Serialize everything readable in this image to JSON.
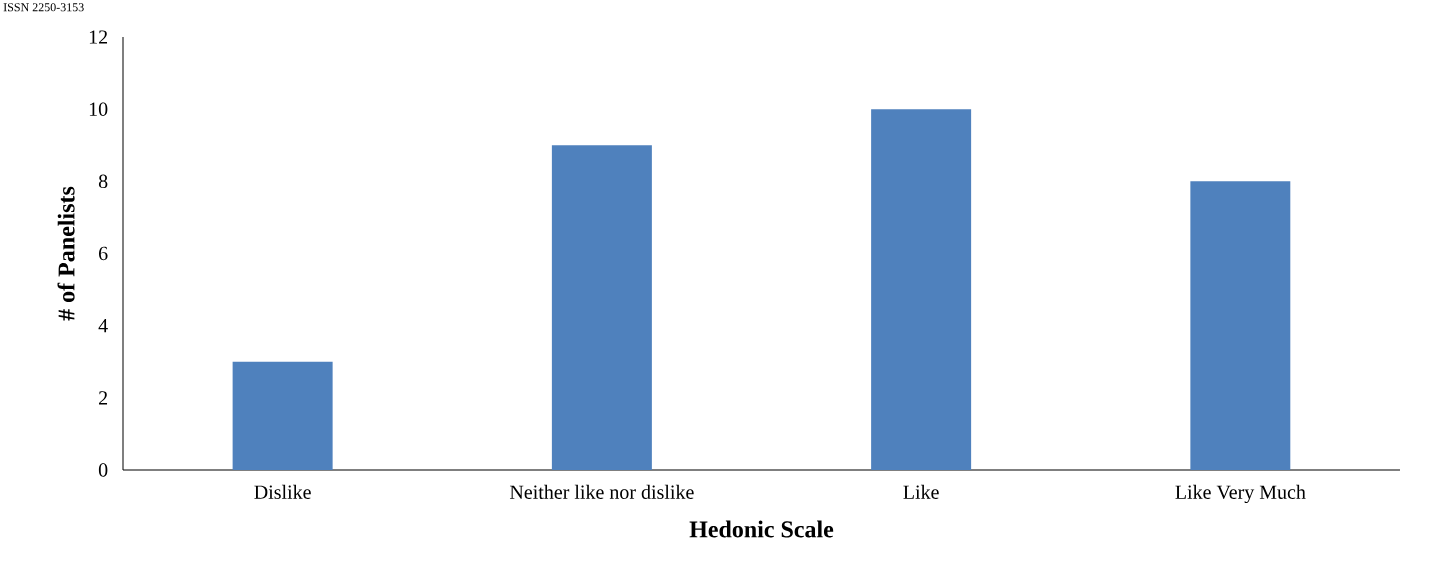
{
  "chart_data": {
    "type": "bar",
    "xlabel": "Hedonic Scale",
    "ylabel": "# of Panelists",
    "categories": [
      "Dislike",
      "Neither like nor dislike",
      "Like",
      "Like Very Much"
    ],
    "values": [
      3,
      9,
      10,
      8
    ],
    "color": "#4f81bd",
    "ylim": [
      0,
      12
    ],
    "yticks": [
      0,
      2,
      4,
      6,
      8,
      10,
      12
    ],
    "grid": false,
    "annotations": [
      "ISSN 2250-3153"
    ]
  }
}
